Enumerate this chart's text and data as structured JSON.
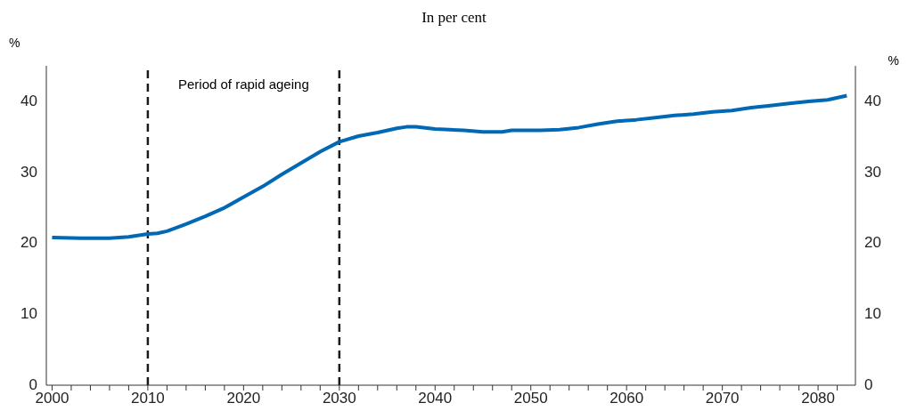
{
  "chart_data": {
    "type": "line",
    "subtitle": "In per cent",
    "ylabel": "%",
    "y2label": "%",
    "x": [
      2000,
      2003,
      2006,
      2008,
      2010,
      2011,
      2012,
      2014,
      2016,
      2018,
      2020,
      2022,
      2024,
      2026,
      2028,
      2030,
      2032,
      2034,
      2036,
      2037,
      2038,
      2040,
      2043,
      2045,
      2047,
      2048,
      2051,
      2053,
      2055,
      2057,
      2059,
      2061,
      2063,
      2065,
      2067,
      2069,
      2071,
      2073,
      2075,
      2077,
      2079,
      2081,
      2083
    ],
    "series": [
      {
        "color": "#0068b4",
        "values": [
          20.8,
          20.7,
          20.7,
          20.9,
          21.3,
          21.4,
          21.7,
          22.7,
          23.8,
          25.0,
          26.5,
          28.0,
          29.7,
          31.3,
          32.9,
          34.3,
          35.1,
          35.6,
          36.2,
          36.4,
          36.4,
          36.1,
          35.9,
          35.7,
          35.7,
          35.9,
          35.9,
          36.0,
          36.3,
          36.8,
          37.2,
          37.4,
          37.7,
          38.0,
          38.2,
          38.5,
          38.7,
          39.1,
          39.4,
          39.7,
          40.0,
          40.2,
          40.8
        ]
      }
    ],
    "xlim": [
      1999.4,
      2083.9
    ],
    "xticks": [
      2000,
      {
        "value": 2002,
        "label": null
      },
      {
        "value": 2004,
        "label": null
      },
      {
        "value": 2006,
        "label": null
      },
      {
        "value": 2008,
        "label": null
      },
      2010,
      {
        "value": 2012,
        "label": null
      },
      {
        "value": 2014,
        "label": null
      },
      {
        "value": 2016,
        "label": null
      },
      {
        "value": 2018,
        "label": null
      },
      2020,
      {
        "value": 2022,
        "label": null
      },
      {
        "value": 2024,
        "label": null
      },
      {
        "value": 2026,
        "label": null
      },
      {
        "value": 2028,
        "label": null
      },
      2030,
      {
        "value": 2032,
        "label": null
      },
      {
        "value": 2034,
        "label": null
      },
      {
        "value": 2036,
        "label": null
      },
      {
        "value": 2038,
        "label": null
      },
      2040,
      {
        "value": 2042,
        "label": null
      },
      {
        "value": 2044,
        "label": null
      },
      {
        "value": 2046,
        "label": null
      },
      {
        "value": 2048,
        "label": null
      },
      2050,
      {
        "value": 2052,
        "label": null
      },
      {
        "value": 2054,
        "label": null
      },
      {
        "value": 2056,
        "label": null
      },
      {
        "value": 2058,
        "label": null
      },
      2060,
      {
        "value": 2062,
        "label": null
      },
      {
        "value": 2064,
        "label": null
      },
      {
        "value": 2066,
        "label": null
      },
      {
        "value": 2068,
        "label": null
      },
      2070,
      {
        "value": 2072,
        "label": null
      },
      {
        "value": 2074,
        "label": null
      },
      {
        "value": 2076,
        "label": null
      },
      {
        "value": 2078,
        "label": null
      },
      2080,
      {
        "value": 2082,
        "label": null
      }
    ],
    "ylim": [
      0,
      45
    ],
    "yticks": [
      0,
      10,
      20,
      30,
      40
    ],
    "y2lim": [
      0,
      45
    ],
    "y2ticks": [
      0,
      10,
      20,
      30,
      40
    ],
    "ref_lines": [
      {
        "axis": "x",
        "value": 2010,
        "label": null,
        "color": "#1a1a1a",
        "line_style": "dashed"
      },
      {
        "axis": "x",
        "value": 2030,
        "label": null,
        "color": "#1a1a1a",
        "line_style": "dashed"
      }
    ],
    "annotations": [
      "Period of rapid ageing"
    ],
    "grid": false,
    "legend": false,
    "marker": "none",
    "line_style": "solid"
  }
}
